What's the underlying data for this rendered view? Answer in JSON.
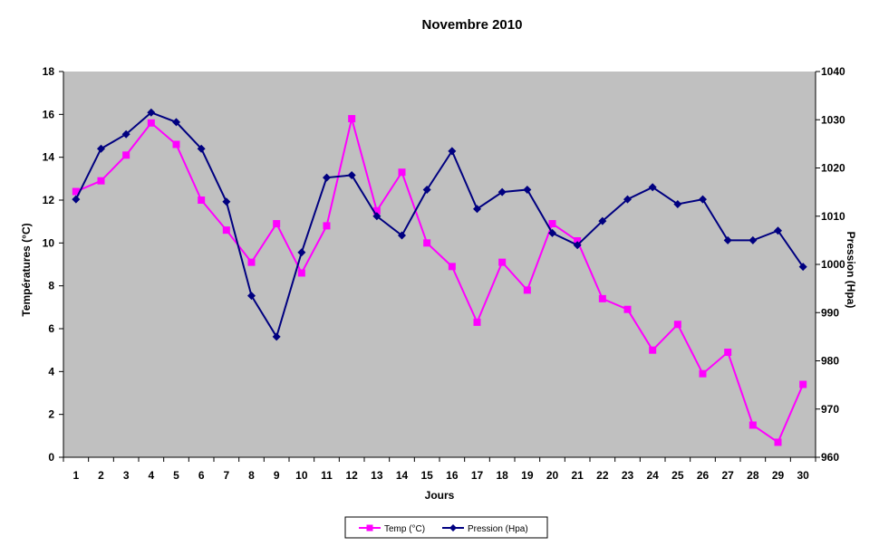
{
  "chart_data": {
    "type": "line",
    "title": "Novembre 2010",
    "xlabel": "Jours",
    "ylabel_left": "Températures (°C)",
    "ylabel_right": "Pression (Hpa)",
    "x": [
      1,
      2,
      3,
      4,
      5,
      6,
      7,
      8,
      9,
      10,
      11,
      12,
      13,
      14,
      15,
      16,
      17,
      18,
      19,
      20,
      21,
      22,
      23,
      24,
      25,
      26,
      27,
      28,
      29,
      30
    ],
    "ylim_left": [
      0,
      18
    ],
    "yticks_left": [
      0,
      2,
      4,
      6,
      8,
      10,
      12,
      14,
      16,
      18
    ],
    "ylim_right": [
      960,
      1040
    ],
    "yticks_right": [
      960,
      970,
      980,
      990,
      1000,
      1010,
      1020,
      1030,
      1040
    ],
    "grid": false,
    "legend_position": "bottom",
    "plot_background": "#c0c0c0",
    "series": [
      {
        "name": "Temp (°C)",
        "axis": "left",
        "color": "#ff00ff",
        "marker": "square",
        "values": [
          12.4,
          12.9,
          14.1,
          15.6,
          14.6,
          12.0,
          10.6,
          9.1,
          10.9,
          8.6,
          10.8,
          15.8,
          11.5,
          13.3,
          10.0,
          8.9,
          6.3,
          9.1,
          7.8,
          10.9,
          10.1,
          7.4,
          6.9,
          5.0,
          6.2,
          3.9,
          4.9,
          1.5,
          0.7,
          3.4
        ]
      },
      {
        "name": "Pression (Hpa)",
        "axis": "right",
        "color": "#000080",
        "marker": "diamond",
        "values": [
          1013.5,
          1024,
          1027,
          1031.5,
          1029.5,
          1024,
          1013,
          993.5,
          985,
          1002.5,
          1018,
          1018.5,
          1010,
          1006,
          1015.5,
          1023.5,
          1011.5,
          1015,
          1015.5,
          1006.5,
          1004,
          1009,
          1013.5,
          1016,
          1012.5,
          1013.5,
          1005,
          1005,
          1007,
          999.5
        ]
      }
    ]
  }
}
